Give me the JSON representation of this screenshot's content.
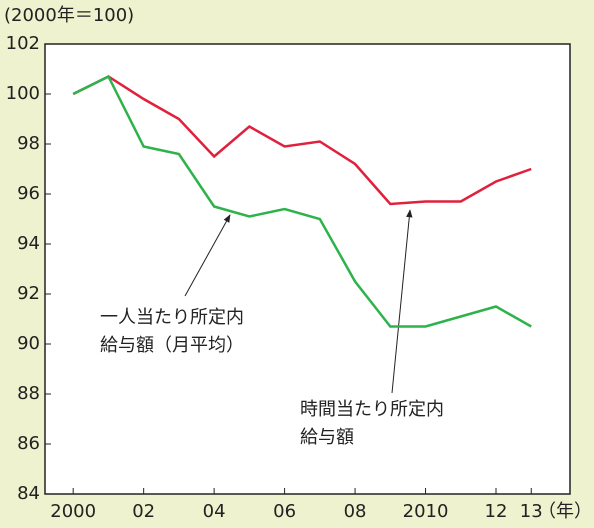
{
  "chart_data": {
    "type": "line",
    "unit_label": "(2000年＝100)",
    "x_unit_label": "（年）",
    "x": [
      2000,
      2001,
      2002,
      2003,
      2004,
      2005,
      2006,
      2007,
      2008,
      2009,
      2010,
      2011,
      2012,
      2013
    ],
    "series": [
      {
        "name": "時間当たり所定内給与額",
        "color": "#e0203c",
        "values": [
          100,
          100.7,
          99.8,
          99.0,
          97.5,
          98.7,
          97.9,
          98.1,
          97.2,
          95.6,
          95.7,
          95.7,
          96.5,
          97.0
        ]
      },
      {
        "name": "一人当たり所定内給与額（月平均）",
        "color": "#2db34a",
        "values": [
          100,
          100.7,
          97.9,
          97.6,
          95.5,
          95.1,
          95.4,
          95.0,
          92.5,
          90.7,
          90.7,
          91.1,
          91.5,
          90.7
        ]
      }
    ],
    "annotations": [
      {
        "lines": [
          "一人当たり所定内",
          "給与額（月平均）"
        ]
      },
      {
        "lines": [
          "時間当たり所定内",
          "給与額"
        ]
      }
    ],
    "xlim": [
      1999.2,
      2014.1
    ],
    "xticks": [
      2000,
      {
        "value": 2002,
        "label": "02"
      },
      {
        "value": 2004,
        "label": "04"
      },
      {
        "value": 2006,
        "label": "06"
      },
      {
        "value": 2008,
        "label": "08"
      },
      2010,
      {
        "value": 2012,
        "label": "12"
      },
      {
        "value": 2013,
        "label": "13"
      }
    ],
    "ylim": [
      84,
      102
    ],
    "yticks": [
      84,
      86,
      88,
      90,
      92,
      94,
      96,
      98,
      100,
      102
    ]
  }
}
